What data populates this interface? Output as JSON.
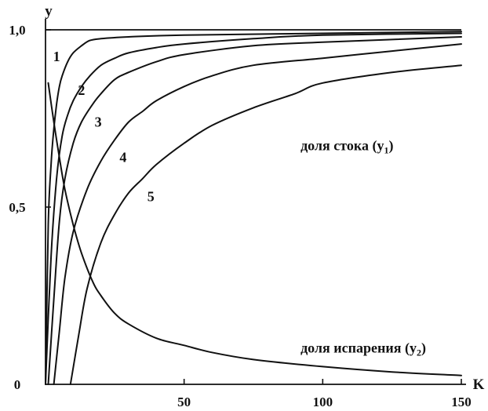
{
  "chart_data": {
    "type": "line",
    "xlabel": "K",
    "ylabel": "y",
    "xlim": [
      0,
      150
    ],
    "ylim": [
      0,
      1.0
    ],
    "x_ticks": [
      {
        "value": 50,
        "label": "50"
      },
      {
        "value": 100,
        "label": "100"
      },
      {
        "value": 150,
        "label": "150"
      }
    ],
    "y_ticks": [
      {
        "value": 0,
        "label": "0"
      },
      {
        "value": 0.5,
        "label": "0,5"
      },
      {
        "value": 1.0,
        "label": "1,0"
      }
    ],
    "series": [
      {
        "name": "1",
        "x": [
          0,
          1,
          2,
          3,
          4,
          5,
          6,
          8,
          10,
          13,
          16,
          20,
          30,
          50,
          100,
          150
        ],
        "y": [
          0,
          0.45,
          0.62,
          0.72,
          0.79,
          0.84,
          0.87,
          0.91,
          0.935,
          0.955,
          0.97,
          0.975,
          0.98,
          0.985,
          0.99,
          0.995
        ]
      },
      {
        "name": "2",
        "x": [
          0,
          2,
          4,
          6,
          8,
          10,
          13,
          16,
          20,
          25,
          30,
          40,
          50,
          75,
          100,
          150
        ],
        "y": [
          0,
          0.36,
          0.58,
          0.7,
          0.76,
          0.8,
          0.84,
          0.87,
          0.9,
          0.92,
          0.935,
          0.95,
          0.96,
          0.975,
          0.985,
          0.99
        ]
      },
      {
        "name": "3",
        "x": [
          1,
          3,
          5,
          7,
          10,
          13,
          17,
          20,
          25,
          30,
          40,
          50,
          75,
          100,
          150
        ],
        "y": [
          0,
          0.24,
          0.46,
          0.58,
          0.68,
          0.74,
          0.79,
          0.82,
          0.86,
          0.88,
          0.91,
          0.93,
          0.955,
          0.965,
          0.98
        ]
      },
      {
        "name": "4",
        "x": [
          3,
          5,
          7,
          10,
          15,
          20,
          25,
          30,
          35,
          40,
          50,
          60,
          75,
          100,
          125,
          150
        ],
        "y": [
          0,
          0.15,
          0.3,
          0.43,
          0.55,
          0.63,
          0.69,
          0.74,
          0.77,
          0.8,
          0.84,
          0.87,
          0.9,
          0.92,
          0.94,
          0.96
        ]
      },
      {
        "name": "5",
        "x": [
          9,
          12,
          15,
          20,
          25,
          30,
          35,
          40,
          50,
          60,
          75,
          90,
          100,
          125,
          150
        ],
        "y": [
          0,
          0.14,
          0.27,
          0.4,
          0.48,
          0.54,
          0.58,
          0.62,
          0.68,
          0.73,
          0.78,
          0.82,
          0.85,
          0.88,
          0.9
        ]
      },
      {
        "name": "",
        "x": [
          1,
          3,
          5,
          7,
          10,
          13,
          17,
          20,
          25,
          30,
          40,
          50,
          60,
          75,
          100,
          125,
          150
        ],
        "y": [
          0.85,
          0.74,
          0.64,
          0.55,
          0.45,
          0.37,
          0.29,
          0.25,
          0.2,
          0.17,
          0.13,
          0.11,
          0.09,
          0.07,
          0.05,
          0.035,
          0.025
        ]
      }
    ],
    "annotations": {
      "runoff": {
        "text": "доля стока (y",
        "sub": "1",
        "close": ")",
        "x": 92,
        "y": 0.66
      },
      "evaporation": {
        "text": "доля испарения (y",
        "sub": "2",
        "close": ")",
        "x": 92,
        "y": 0.09
      }
    },
    "curve_label_positions": [
      {
        "name": "1",
        "x": 4,
        "y": 0.925
      },
      {
        "name": "2",
        "x": 13,
        "y": 0.83
      },
      {
        "name": "3",
        "x": 19,
        "y": 0.74
      },
      {
        "name": "4",
        "x": 28,
        "y": 0.64
      },
      {
        "name": "5",
        "x": 38,
        "y": 0.53
      }
    ],
    "grid": false
  }
}
